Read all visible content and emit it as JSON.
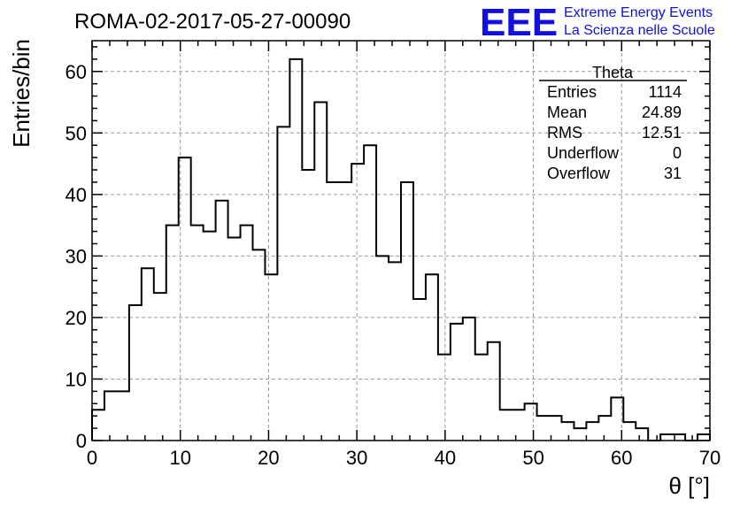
{
  "chart_data": {
    "type": "bar",
    "title": "ROMA-02-2017-05-27-00090",
    "xlabel": "θ [°]",
    "ylabel": "Entries/bin",
    "xlim": [
      0,
      70
    ],
    "ylim": [
      0,
      65
    ],
    "grid": true,
    "bin_width": 1.4,
    "x_ticks": [
      0,
      10,
      20,
      30,
      40,
      50,
      60,
      70
    ],
    "y_ticks": [
      0,
      10,
      20,
      30,
      40,
      50,
      60
    ],
    "values": [
      5,
      8,
      8,
      22,
      28,
      24,
      35,
      46,
      35,
      34,
      39,
      33,
      35,
      31,
      27,
      51,
      62,
      44,
      55,
      42,
      42,
      45,
      48,
      30,
      29,
      42,
      23,
      27,
      14,
      19,
      20,
      14,
      16,
      5,
      5,
      6,
      4,
      4,
      3,
      2,
      3,
      4,
      7,
      3,
      2,
      0,
      1,
      1,
      0,
      1
    ],
    "stats_box": {
      "title": "Theta",
      "rows": [
        {
          "label": "Entries",
          "value": "1114"
        },
        {
          "label": "Mean",
          "value": "24.89"
        },
        {
          "label": "RMS",
          "value": "12.51"
        },
        {
          "label": "Underflow",
          "value": "0"
        },
        {
          "label": "Overflow",
          "value": "31"
        }
      ]
    },
    "logo": {
      "mark": "EEE",
      "line1": "Extreme Energy Events",
      "line2": "La Scienza nelle Scuole",
      "color": "#1010e0"
    }
  }
}
